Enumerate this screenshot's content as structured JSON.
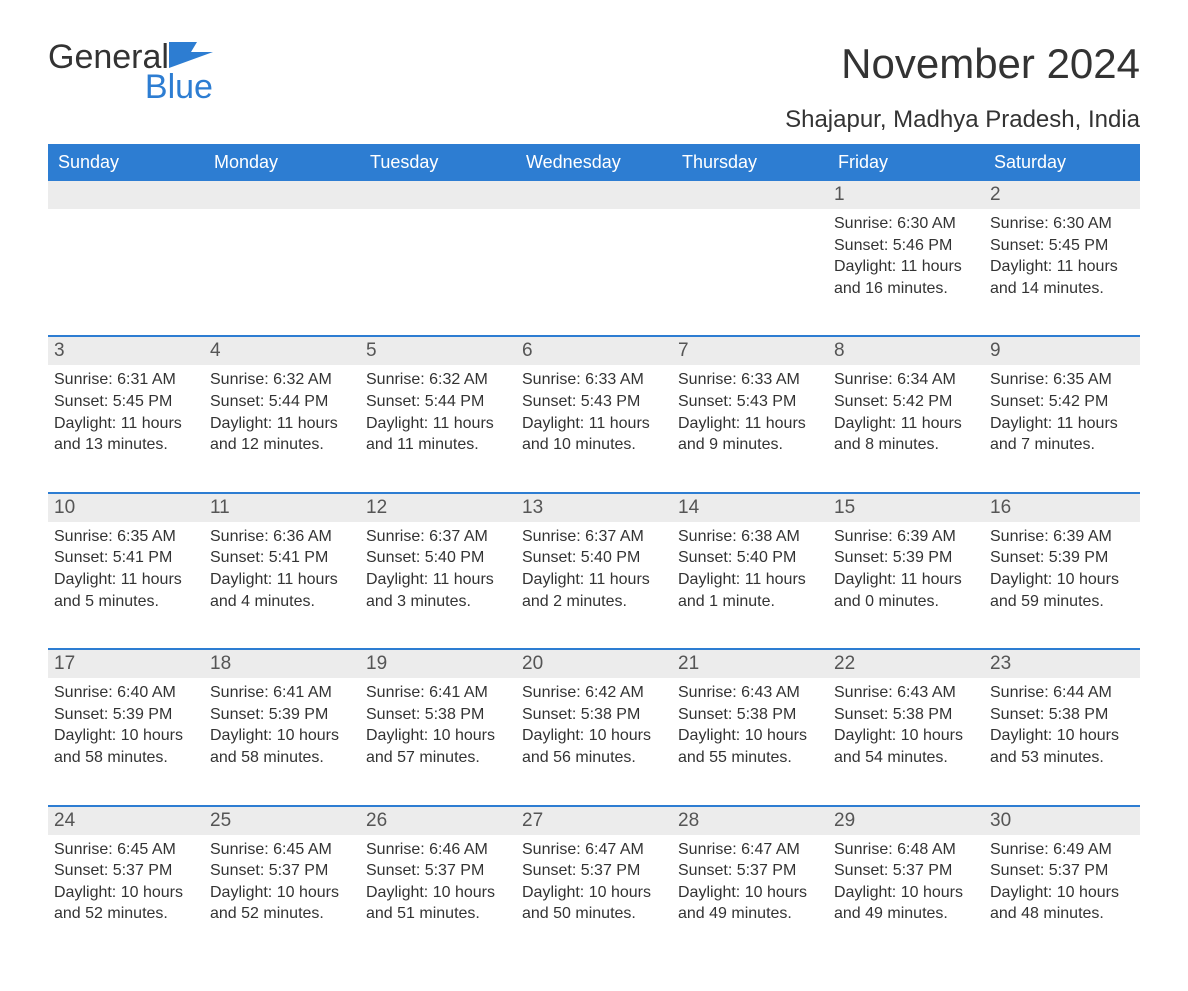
{
  "brand": {
    "word1": "General",
    "word2": "Blue",
    "accent_color": "#2d7dd2"
  },
  "title": "November 2024",
  "location": "Shajapur, Madhya Pradesh, India",
  "colors": {
    "header_bg": "#2d7dd2",
    "header_text": "#ffffff",
    "daynum_bg": "#ececec",
    "text": "#333333",
    "background": "#ffffff"
  },
  "typography": {
    "title_fontsize": 42,
    "location_fontsize": 24,
    "header_fontsize": 18,
    "daynum_fontsize": 19,
    "info_fontsize": 16
  },
  "day_names": [
    "Sunday",
    "Monday",
    "Tuesday",
    "Wednesday",
    "Thursday",
    "Friday",
    "Saturday"
  ],
  "labels": {
    "sunrise": "Sunrise:",
    "sunset": "Sunset:",
    "daylight": "Daylight:"
  },
  "weeks": [
    [
      {
        "empty": true
      },
      {
        "empty": true
      },
      {
        "empty": true
      },
      {
        "empty": true
      },
      {
        "empty": true
      },
      {
        "day": "1",
        "sunrise": "6:30 AM",
        "sunset": "5:46 PM",
        "daylight": "11 hours and 16 minutes."
      },
      {
        "day": "2",
        "sunrise": "6:30 AM",
        "sunset": "5:45 PM",
        "daylight": "11 hours and 14 minutes."
      }
    ],
    [
      {
        "day": "3",
        "sunrise": "6:31 AM",
        "sunset": "5:45 PM",
        "daylight": "11 hours and 13 minutes."
      },
      {
        "day": "4",
        "sunrise": "6:32 AM",
        "sunset": "5:44 PM",
        "daylight": "11 hours and 12 minutes."
      },
      {
        "day": "5",
        "sunrise": "6:32 AM",
        "sunset": "5:44 PM",
        "daylight": "11 hours and 11 minutes."
      },
      {
        "day": "6",
        "sunrise": "6:33 AM",
        "sunset": "5:43 PM",
        "daylight": "11 hours and 10 minutes."
      },
      {
        "day": "7",
        "sunrise": "6:33 AM",
        "sunset": "5:43 PM",
        "daylight": "11 hours and 9 minutes."
      },
      {
        "day": "8",
        "sunrise": "6:34 AM",
        "sunset": "5:42 PM",
        "daylight": "11 hours and 8 minutes."
      },
      {
        "day": "9",
        "sunrise": "6:35 AM",
        "sunset": "5:42 PM",
        "daylight": "11 hours and 7 minutes."
      }
    ],
    [
      {
        "day": "10",
        "sunrise": "6:35 AM",
        "sunset": "5:41 PM",
        "daylight": "11 hours and 5 minutes."
      },
      {
        "day": "11",
        "sunrise": "6:36 AM",
        "sunset": "5:41 PM",
        "daylight": "11 hours and 4 minutes."
      },
      {
        "day": "12",
        "sunrise": "6:37 AM",
        "sunset": "5:40 PM",
        "daylight": "11 hours and 3 minutes."
      },
      {
        "day": "13",
        "sunrise": "6:37 AM",
        "sunset": "5:40 PM",
        "daylight": "11 hours and 2 minutes."
      },
      {
        "day": "14",
        "sunrise": "6:38 AM",
        "sunset": "5:40 PM",
        "daylight": "11 hours and 1 minute."
      },
      {
        "day": "15",
        "sunrise": "6:39 AM",
        "sunset": "5:39 PM",
        "daylight": "11 hours and 0 minutes."
      },
      {
        "day": "16",
        "sunrise": "6:39 AM",
        "sunset": "5:39 PM",
        "daylight": "10 hours and 59 minutes."
      }
    ],
    [
      {
        "day": "17",
        "sunrise": "6:40 AM",
        "sunset": "5:39 PM",
        "daylight": "10 hours and 58 minutes."
      },
      {
        "day": "18",
        "sunrise": "6:41 AM",
        "sunset": "5:39 PM",
        "daylight": "10 hours and 58 minutes."
      },
      {
        "day": "19",
        "sunrise": "6:41 AM",
        "sunset": "5:38 PM",
        "daylight": "10 hours and 57 minutes."
      },
      {
        "day": "20",
        "sunrise": "6:42 AM",
        "sunset": "5:38 PM",
        "daylight": "10 hours and 56 minutes."
      },
      {
        "day": "21",
        "sunrise": "6:43 AM",
        "sunset": "5:38 PM",
        "daylight": "10 hours and 55 minutes."
      },
      {
        "day": "22",
        "sunrise": "6:43 AM",
        "sunset": "5:38 PM",
        "daylight": "10 hours and 54 minutes."
      },
      {
        "day": "23",
        "sunrise": "6:44 AM",
        "sunset": "5:38 PM",
        "daylight": "10 hours and 53 minutes."
      }
    ],
    [
      {
        "day": "24",
        "sunrise": "6:45 AM",
        "sunset": "5:37 PM",
        "daylight": "10 hours and 52 minutes."
      },
      {
        "day": "25",
        "sunrise": "6:45 AM",
        "sunset": "5:37 PM",
        "daylight": "10 hours and 52 minutes."
      },
      {
        "day": "26",
        "sunrise": "6:46 AM",
        "sunset": "5:37 PM",
        "daylight": "10 hours and 51 minutes."
      },
      {
        "day": "27",
        "sunrise": "6:47 AM",
        "sunset": "5:37 PM",
        "daylight": "10 hours and 50 minutes."
      },
      {
        "day": "28",
        "sunrise": "6:47 AM",
        "sunset": "5:37 PM",
        "daylight": "10 hours and 49 minutes."
      },
      {
        "day": "29",
        "sunrise": "6:48 AM",
        "sunset": "5:37 PM",
        "daylight": "10 hours and 49 minutes."
      },
      {
        "day": "30",
        "sunrise": "6:49 AM",
        "sunset": "5:37 PM",
        "daylight": "10 hours and 48 minutes."
      }
    ]
  ]
}
